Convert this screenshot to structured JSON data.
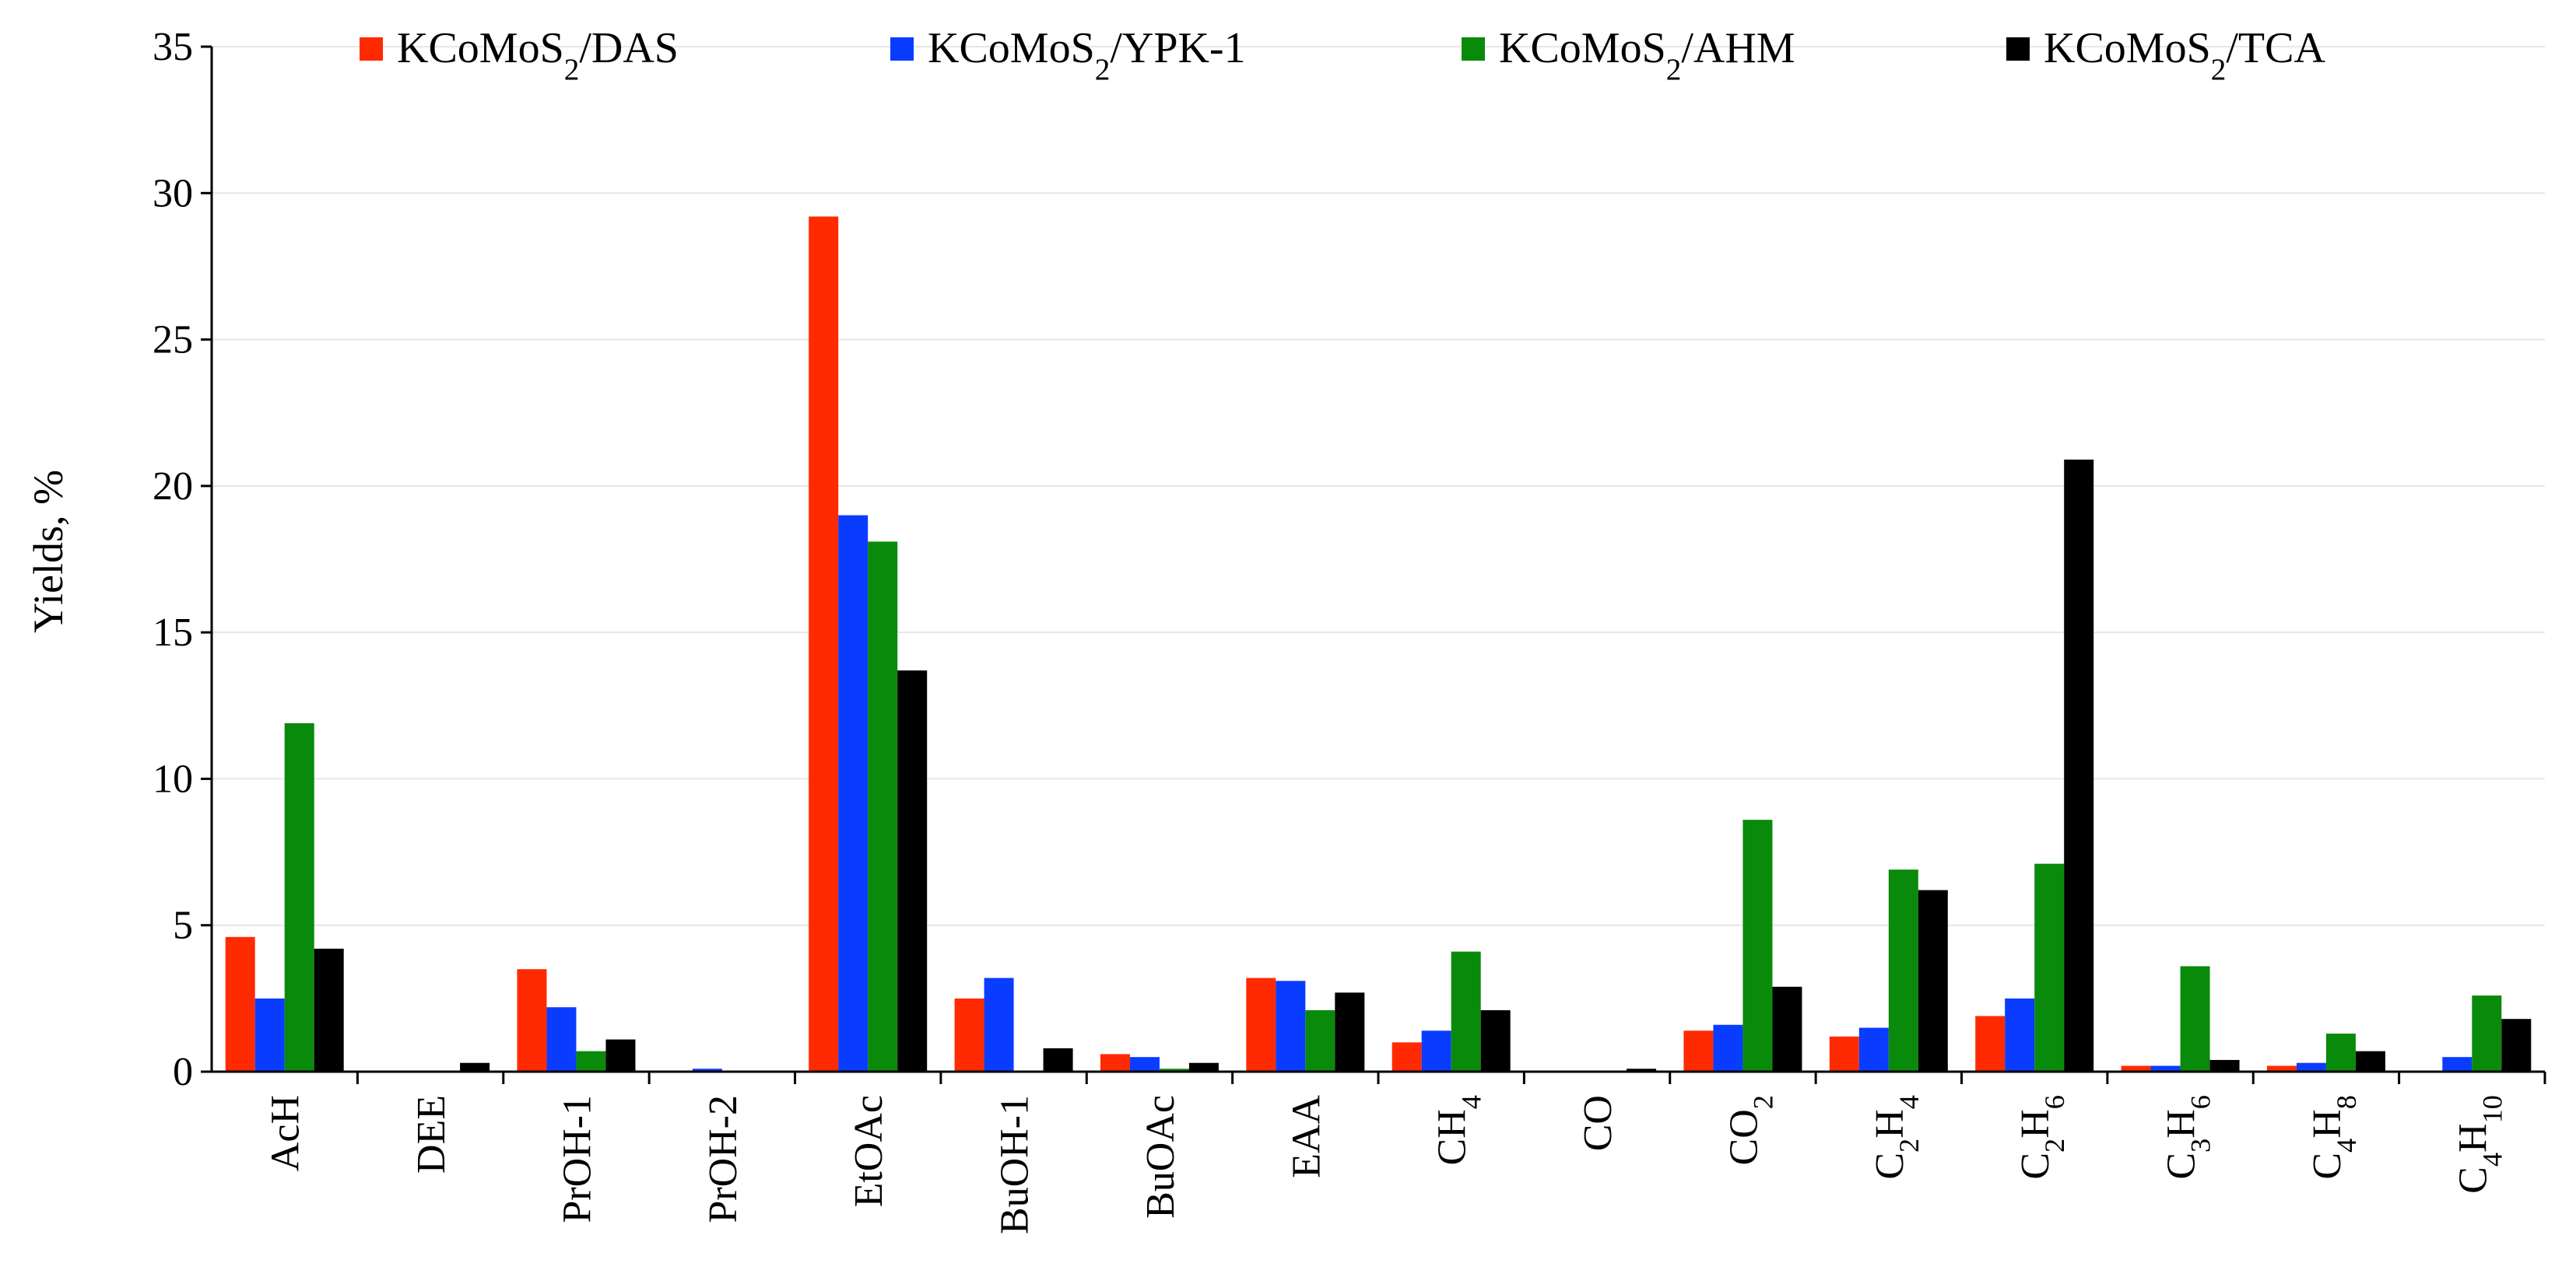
{
  "chart_data": {
    "type": "bar",
    "ylabel": "Yields, %",
    "xlabel": "",
    "ylim": [
      0,
      35
    ],
    "yticks": [
      "0",
      "5",
      "10",
      "15",
      "20",
      "25",
      "30",
      "35"
    ],
    "grid": true,
    "legend_position": "top",
    "categories": [
      {
        "base": "AcH",
        "sub": ""
      },
      {
        "base": "DEE",
        "sub": ""
      },
      {
        "base": "PrOH-1",
        "sub": ""
      },
      {
        "base": "PrOH-2",
        "sub": ""
      },
      {
        "base": "EtOAc",
        "sub": ""
      },
      {
        "base": "BuOH-1",
        "sub": ""
      },
      {
        "base": "BuOAc",
        "sub": ""
      },
      {
        "base": "EAA",
        "sub": ""
      },
      {
        "parts": [
          [
            "CH",
            ""
          ],
          [
            "4",
            "sub"
          ]
        ]
      },
      {
        "base": "CO",
        "sub": ""
      },
      {
        "parts": [
          [
            "CO",
            ""
          ],
          [
            "2",
            "sub"
          ]
        ]
      },
      {
        "parts": [
          [
            "C",
            ""
          ],
          [
            "2",
            "sub"
          ],
          [
            "H",
            ""
          ],
          [
            "4",
            "sub"
          ]
        ]
      },
      {
        "parts": [
          [
            "C",
            ""
          ],
          [
            "2",
            "sub"
          ],
          [
            "H",
            ""
          ],
          [
            "6",
            "sub"
          ]
        ]
      },
      {
        "parts": [
          [
            "C",
            ""
          ],
          [
            "3",
            "sub"
          ],
          [
            "H",
            ""
          ],
          [
            "6",
            "sub"
          ]
        ]
      },
      {
        "parts": [
          [
            "C",
            ""
          ],
          [
            "4",
            "sub"
          ],
          [
            "H",
            ""
          ],
          [
            "8",
            "sub"
          ]
        ]
      },
      {
        "parts": [
          [
            "C",
            ""
          ],
          [
            "4",
            "sub"
          ],
          [
            "H",
            ""
          ],
          [
            "10",
            "sub"
          ]
        ]
      }
    ],
    "series": [
      {
        "name_parts": [
          [
            "KCoMoS",
            ""
          ],
          [
            "2",
            "sub"
          ],
          [
            "/DAS",
            ""
          ]
        ],
        "color": "#ff2a00",
        "values": [
          4.6,
          0,
          3.5,
          0,
          29.2,
          2.5,
          0.6,
          3.2,
          1.0,
          0,
          1.4,
          1.2,
          1.9,
          0.2,
          0.2,
          0
        ]
      },
      {
        "name_parts": [
          [
            "KCoMoS",
            ""
          ],
          [
            "2",
            "sub"
          ],
          [
            "/YPK-1",
            ""
          ]
        ],
        "color": "#0a3cff",
        "values": [
          2.5,
          0,
          2.2,
          0.1,
          19.0,
          3.2,
          0.5,
          3.1,
          1.4,
          0,
          1.6,
          1.5,
          2.5,
          0.2,
          0.3,
          0.5
        ]
      },
      {
        "name_parts": [
          [
            "KCoMoS",
            ""
          ],
          [
            "2",
            "sub"
          ],
          [
            "/AHM",
            ""
          ]
        ],
        "color": "#0a8a0a",
        "values": [
          11.9,
          0,
          0.7,
          0,
          18.1,
          0,
          0.1,
          2.1,
          4.1,
          0,
          8.6,
          6.9,
          7.1,
          3.6,
          1.3,
          2.6
        ]
      },
      {
        "name_parts": [
          [
            "KCoMoS",
            ""
          ],
          [
            "2",
            "sub"
          ],
          [
            "/TCA",
            ""
          ]
        ],
        "color": "#000000",
        "values": [
          4.2,
          0.3,
          1.1,
          0,
          13.7,
          0.8,
          0.3,
          2.7,
          2.1,
          0.1,
          2.9,
          6.2,
          20.9,
          0.4,
          0.7,
          1.8
        ]
      }
    ]
  }
}
